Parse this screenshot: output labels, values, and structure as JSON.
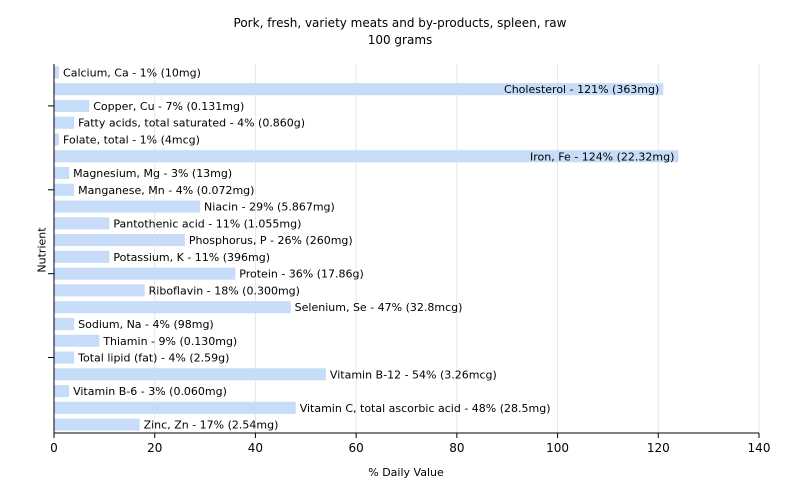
{
  "chart_data": {
    "type": "bar",
    "orientation": "horizontal",
    "title": "Pork, fresh, variety meats and by-products, spleen, raw",
    "subtitle": "100 grams",
    "xlabel": "% Daily Value",
    "ylabel": "Nutrient",
    "xlim": [
      0,
      140
    ],
    "xticks": [
      0,
      20,
      40,
      60,
      80,
      100,
      120,
      140
    ],
    "grid": true,
    "bar_color": "#c6dcf8",
    "categories": [
      "Calcium, Ca",
      "Cholesterol",
      "Copper, Cu",
      "Fatty acids, total saturated",
      "Folate, total",
      "Iron, Fe",
      "Magnesium, Mg",
      "Manganese, Mn",
      "Niacin",
      "Pantothenic acid",
      "Phosphorus, P",
      "Potassium, K",
      "Protein",
      "Riboflavin",
      "Selenium, Se",
      "Sodium, Na",
      "Thiamin",
      "Total lipid (fat)",
      "Vitamin B-12",
      "Vitamin B-6",
      "Vitamin C, total ascorbic acid",
      "Zinc, Zn"
    ],
    "values": [
      1,
      121,
      7,
      4,
      1,
      124,
      3,
      4,
      29,
      11,
      26,
      11,
      36,
      18,
      47,
      4,
      9,
      4,
      54,
      3,
      48,
      17
    ],
    "labels": [
      "Calcium, Ca - 1% (10mg)",
      "Cholesterol - 121% (363mg)",
      "Copper, Cu - 7% (0.131mg)",
      "Fatty acids, total saturated - 4% (0.860g)",
      "Folate, total - 1% (4mcg)",
      "Iron, Fe - 124% (22.32mg)",
      "Magnesium, Mg - 3% (13mg)",
      "Manganese, Mn - 4% (0.072mg)",
      "Niacin - 29% (5.867mg)",
      "Pantothenic acid - 11% (1.055mg)",
      "Phosphorus, P - 26% (260mg)",
      "Potassium, K - 11% (396mg)",
      "Protein - 36% (17.86g)",
      "Riboflavin - 18% (0.300mg)",
      "Selenium, Se - 47% (32.8mcg)",
      "Sodium, Na - 4% (98mg)",
      "Thiamin - 9% (0.130mg)",
      "Total lipid (fat) - 4% (2.59g)",
      "Vitamin B-12 - 54% (3.26mcg)",
      "Vitamin B-6 - 3% (0.060mg)",
      "Vitamin C, total ascorbic acid - 48% (28.5mg)",
      "Zinc, Zn - 17% (2.54mg)"
    ]
  }
}
